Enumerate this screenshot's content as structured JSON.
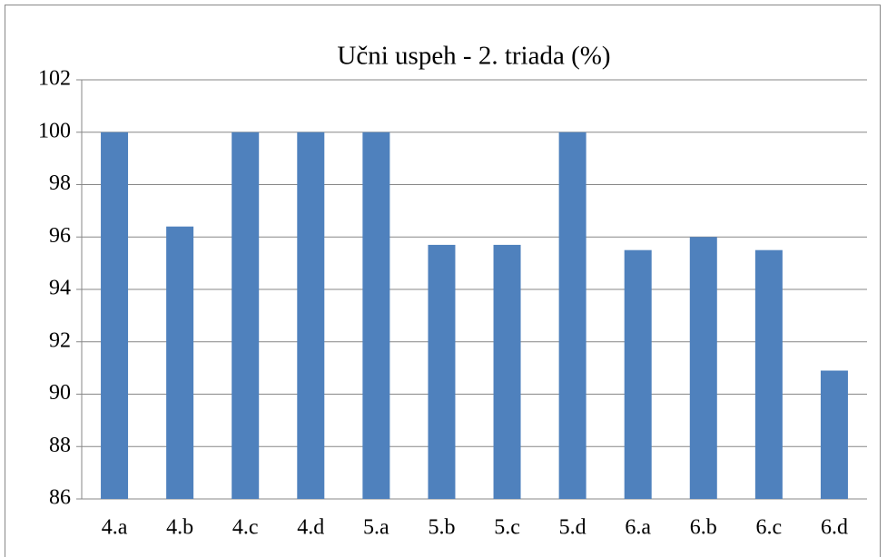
{
  "chart_data": {
    "type": "bar",
    "title": "Učni uspeh - 2. triada (%)",
    "categories": [
      "4.a",
      "4.b",
      "4.c",
      "4.d",
      "5.a",
      "5.b",
      "5.c",
      "5.d",
      "6.a",
      "6.b",
      "6.c",
      "6.d"
    ],
    "values": [
      100,
      96.4,
      100,
      100,
      100,
      95.7,
      95.7,
      100,
      95.5,
      96,
      95.5,
      90.9
    ],
    "color": "#4f81bd",
    "ylim": [
      86,
      102
    ],
    "yticks": [
      86,
      88,
      90,
      92,
      94,
      96,
      98,
      100,
      102
    ],
    "grid": true
  }
}
